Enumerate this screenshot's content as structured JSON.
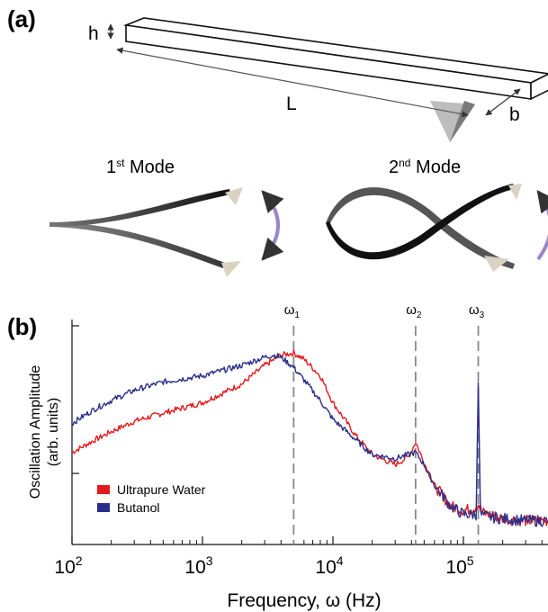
{
  "panel_a": {
    "label": "(a)",
    "dim_h": "h",
    "dim_L": "L",
    "dim_b": "b",
    "mode1_label": "1",
    "mode1_sup": "st",
    "mode1_suffix": " Mode",
    "mode2_label": "2",
    "mode2_sup": "nd",
    "mode2_suffix": " Mode",
    "colors": {
      "beam": "#1a1a1a",
      "beam_gray": "#777777",
      "tip": "#d9d3c2",
      "arrow": "#9b87c9"
    }
  },
  "panel_b": {
    "label": "(b)",
    "omega_markers": [
      {
        "symbol": "ω",
        "sub": "1",
        "x": 5000
      },
      {
        "symbol": "ω",
        "sub": "2",
        "x": 43000
      },
      {
        "symbol": "ω",
        "sub": "3",
        "x": 130000
      }
    ],
    "legend": [
      {
        "name": "Ultrapure Water",
        "color": "#e31a1c"
      },
      {
        "name": "Butanol",
        "color": "#2b2d8a"
      }
    ]
  },
  "chart_data": {
    "type": "line",
    "xlabel": "Frequency, ω (Hz)",
    "ylabel": "Oscillation Amplitude",
    "ylabel2": "(arb. units)",
    "x_scale": "log",
    "xlim": [
      100,
      450000
    ],
    "x_ticks": [
      {
        "base": "10",
        "exp": "2",
        "value": 100
      },
      {
        "base": "10",
        "exp": "3",
        "value": 1000
      },
      {
        "base": "10",
        "exp": "4",
        "value": 10000
      },
      {
        "base": "10",
        "exp": "5",
        "value": 100000
      }
    ],
    "ylim": [
      0,
      1
    ],
    "grid": false,
    "legend_position": "bottom-left",
    "series": [
      {
        "name": "Ultrapure Water",
        "color": "#e31a1c",
        "x": [
          100,
          150,
          200,
          300,
          500,
          1000,
          2000,
          3000,
          4000,
          5000,
          6000,
          8000,
          10000,
          15000,
          20000,
          30000,
          38000,
          43000,
          50000,
          60000,
          80000,
          100000,
          120000,
          130000,
          140000,
          200000,
          300000,
          450000
        ],
        "y": [
          0.38,
          0.44,
          0.48,
          0.53,
          0.57,
          0.62,
          0.71,
          0.8,
          0.85,
          0.86,
          0.83,
          0.75,
          0.62,
          0.46,
          0.37,
          0.32,
          0.36,
          0.43,
          0.33,
          0.22,
          0.12,
          0.1,
          0.11,
          0.13,
          0.09,
          0.06,
          0.05,
          0.05
        ]
      },
      {
        "name": "Butanol",
        "color": "#2b2d8a",
        "x": [
          100,
          150,
          200,
          300,
          500,
          1000,
          2000,
          3000,
          3500,
          4000,
          5000,
          6000,
          8000,
          10000,
          15000,
          20000,
          30000,
          38000,
          43000,
          50000,
          60000,
          80000,
          100000,
          125000,
          130000,
          135000,
          150000,
          200000,
          300000,
          450000
        ],
        "y": [
          0.52,
          0.59,
          0.63,
          0.68,
          0.72,
          0.75,
          0.8,
          0.84,
          0.85,
          0.84,
          0.79,
          0.73,
          0.63,
          0.54,
          0.44,
          0.37,
          0.35,
          0.37,
          0.38,
          0.32,
          0.22,
          0.12,
          0.08,
          0.08,
          0.73,
          0.08,
          0.07,
          0.06,
          0.05,
          0.05
        ]
      }
    ]
  }
}
